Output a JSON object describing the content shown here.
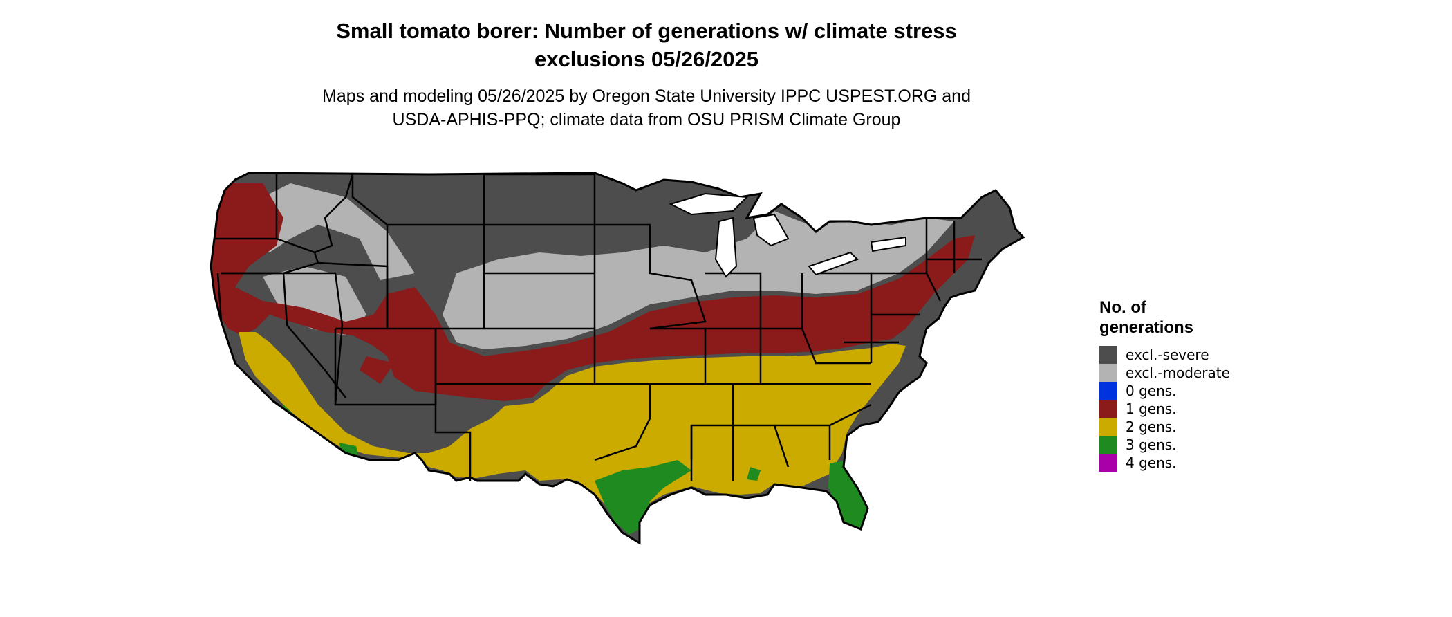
{
  "title": {
    "line1": "Small tomato borer: Number of generations w/ climate stress",
    "line2": "exclusions 05/26/2025"
  },
  "subtitle": {
    "line1": "Maps and modeling 05/26/2025 by Oregon State University IPPC USPEST.ORG and",
    "line2": "USDA-APHIS-PPQ; climate data from OSU PRISM Climate Group"
  },
  "map": {
    "region": "Contiguous United States",
    "boundary_color": "#000000",
    "ocean_color": "#ffffff"
  },
  "legend": {
    "title_line1": "No. of",
    "title_line2": "generations",
    "items": [
      {
        "label": "excl.-severe",
        "color": "#4d4d4d"
      },
      {
        "label": "excl.-moderate",
        "color": "#b3b3b3"
      },
      {
        "label": "0 gens.",
        "color": "#0033dd"
      },
      {
        "label": "1 gens.",
        "color": "#8b1a1a"
      },
      {
        "label": "2 gens.",
        "color": "#ccab00"
      },
      {
        "label": "3 gens.",
        "color": "#1f8a1f"
      },
      {
        "label": "4 gens.",
        "color": "#aa00aa"
      }
    ]
  }
}
